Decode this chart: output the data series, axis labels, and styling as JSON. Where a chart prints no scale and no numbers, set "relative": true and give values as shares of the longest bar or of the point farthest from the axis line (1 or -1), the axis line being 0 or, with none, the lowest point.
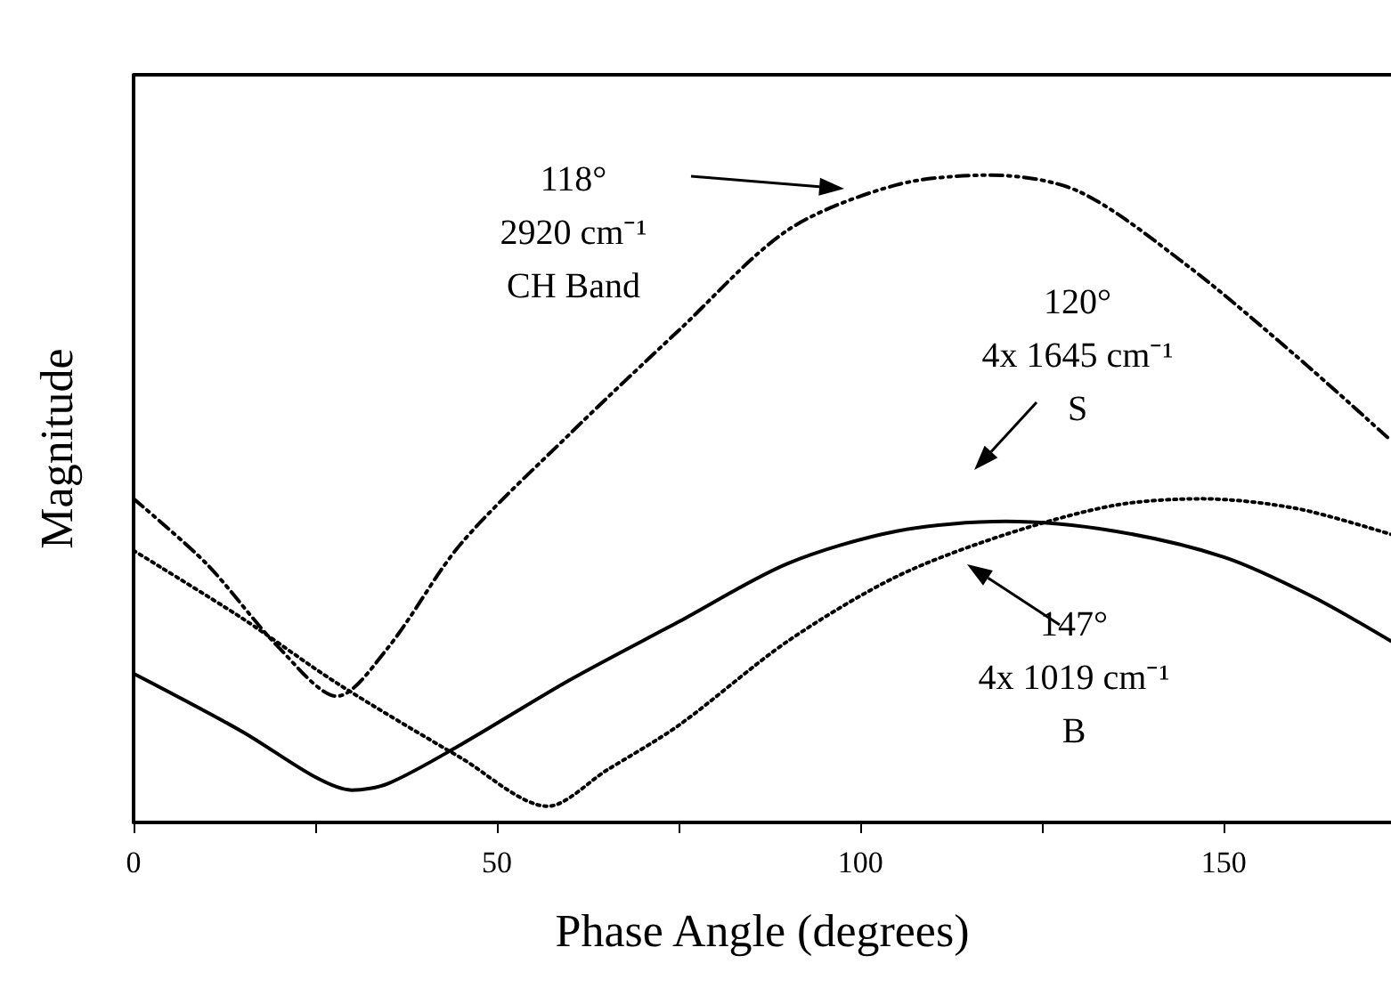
{
  "chart_data": {
    "type": "line",
    "relative": true,
    "xlabel": "Phase Angle (degrees)",
    "ylabel": "Magnitude",
    "xlim": [
      0,
      173
    ],
    "xticks": [
      0,
      {
        "value": 25,
        "label": null
      },
      50,
      {
        "value": 75,
        "label": null
      },
      100,
      {
        "value": 125,
        "label": null
      },
      150
    ],
    "grid": false,
    "marker": "none",
    "series": [
      {
        "color": "#000000",
        "line_style": "dashed",
        "x": [
          0,
          10,
          20,
          28,
          35,
          45,
          60,
          75,
          90,
          105,
          118,
          130,
          145,
          160,
          173
        ],
        "values": [
          0.5,
          0.4,
          0.27,
          0.195,
          0.27,
          0.43,
          0.6,
          0.76,
          0.915,
          0.985,
          1.0,
          0.975,
          0.86,
          0.72,
          0.59
        ]
      },
      {
        "color": "#000000",
        "line_style": "solid",
        "x": [
          0,
          15,
          25,
          30,
          35,
          45,
          60,
          75,
          90,
          105,
          120,
          135,
          150,
          162,
          173
        ],
        "values": [
          0.23,
          0.14,
          0.07,
          0.05,
          0.06,
          0.12,
          0.22,
          0.31,
          0.4,
          0.45,
          0.465,
          0.45,
          0.41,
          0.35,
          0.28
        ]
      },
      {
        "color": "#000000",
        "line_style": "dotted",
        "x": [
          0,
          15,
          28,
          45,
          57,
          65,
          75,
          90,
          105,
          120,
          135,
          147,
          160,
          173
        ],
        "values": [
          0.42,
          0.315,
          0.215,
          0.1,
          0.025,
          0.08,
          0.15,
          0.28,
          0.38,
          0.445,
          0.49,
          0.5,
          0.485,
          0.445
        ]
      }
    ],
    "annotations": [
      "118°\n2920 cm⁻¹\nCH Band",
      "120°\n4x 1645 cm⁻¹\nS",
      "147°\n4x 1019 cm⁻¹\nB"
    ]
  }
}
